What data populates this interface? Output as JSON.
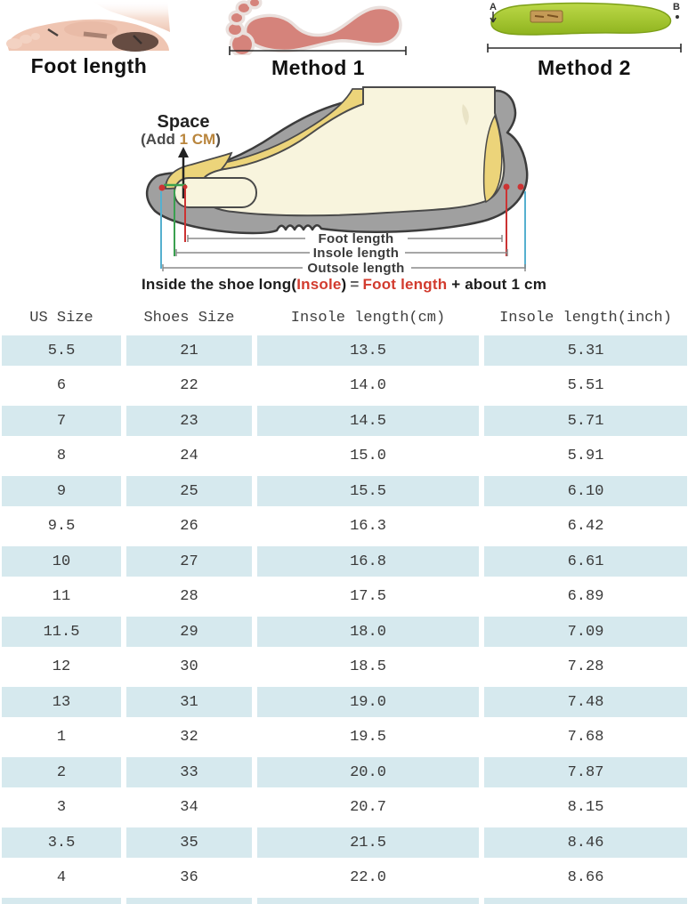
{
  "methods": {
    "foot": {
      "label": "Foot length"
    },
    "method1": {
      "label": "Method 1"
    },
    "method2": {
      "label": "Method 2",
      "point_a": "A",
      "point_b": "B"
    }
  },
  "diagram": {
    "space_title": "Space",
    "add_prefix": "(Add ",
    "add_value": "1 CM",
    "add_suffix": ")",
    "dim_foot": "Foot length",
    "dim_insole": "Insole length",
    "dim_outsole": "Outsole length",
    "formula": {
      "p1": "Inside the shoe long(",
      "insole": "Insole",
      "p2": ")",
      "eq": "=",
      "foot": "Foot length",
      "p3": "+ about 1 cm"
    }
  },
  "size_table": {
    "headers": [
      "US Size",
      "Shoes Size",
      "Insole length(cm)",
      "Insole length(inch)"
    ],
    "rows": [
      [
        "5.5",
        "21",
        "13.5",
        "5.31"
      ],
      [
        "6",
        "22",
        "14.0",
        "5.51"
      ],
      [
        "7",
        "23",
        "14.5",
        "5.71"
      ],
      [
        "8",
        "24",
        "15.0",
        "5.91"
      ],
      [
        "9",
        "25",
        "15.5",
        "6.10"
      ],
      [
        "9.5",
        "26",
        "16.3",
        "6.42"
      ],
      [
        "10",
        "27",
        "16.8",
        "6.61"
      ],
      [
        "11",
        "28",
        "17.5",
        "6.89"
      ],
      [
        "11.5",
        "29",
        "18.0",
        "7.09"
      ],
      [
        "12",
        "30",
        "18.5",
        "7.28"
      ],
      [
        "13",
        "31",
        "19.0",
        "7.48"
      ],
      [
        "1",
        "32",
        "19.5",
        "7.68"
      ],
      [
        "2",
        "33",
        "20.0",
        "7.87"
      ],
      [
        "3",
        "34",
        "20.7",
        "8.15"
      ],
      [
        "3.5",
        "35",
        "21.5",
        "8.46"
      ],
      [
        "4",
        "36",
        "22.0",
        "8.66"
      ]
    ]
  },
  "colors": {
    "alt-row": "#d6e9ee",
    "accent-red": "#d23b2e",
    "tan": "#b9853c",
    "line-green": "#3aa050",
    "line-blue": "#56b0cf",
    "line-red": "#cc3333",
    "sole-gray": "#a0a0a0",
    "insole-yellow": "#ecd47a",
    "foot-cream": "#f8f4dd"
  }
}
